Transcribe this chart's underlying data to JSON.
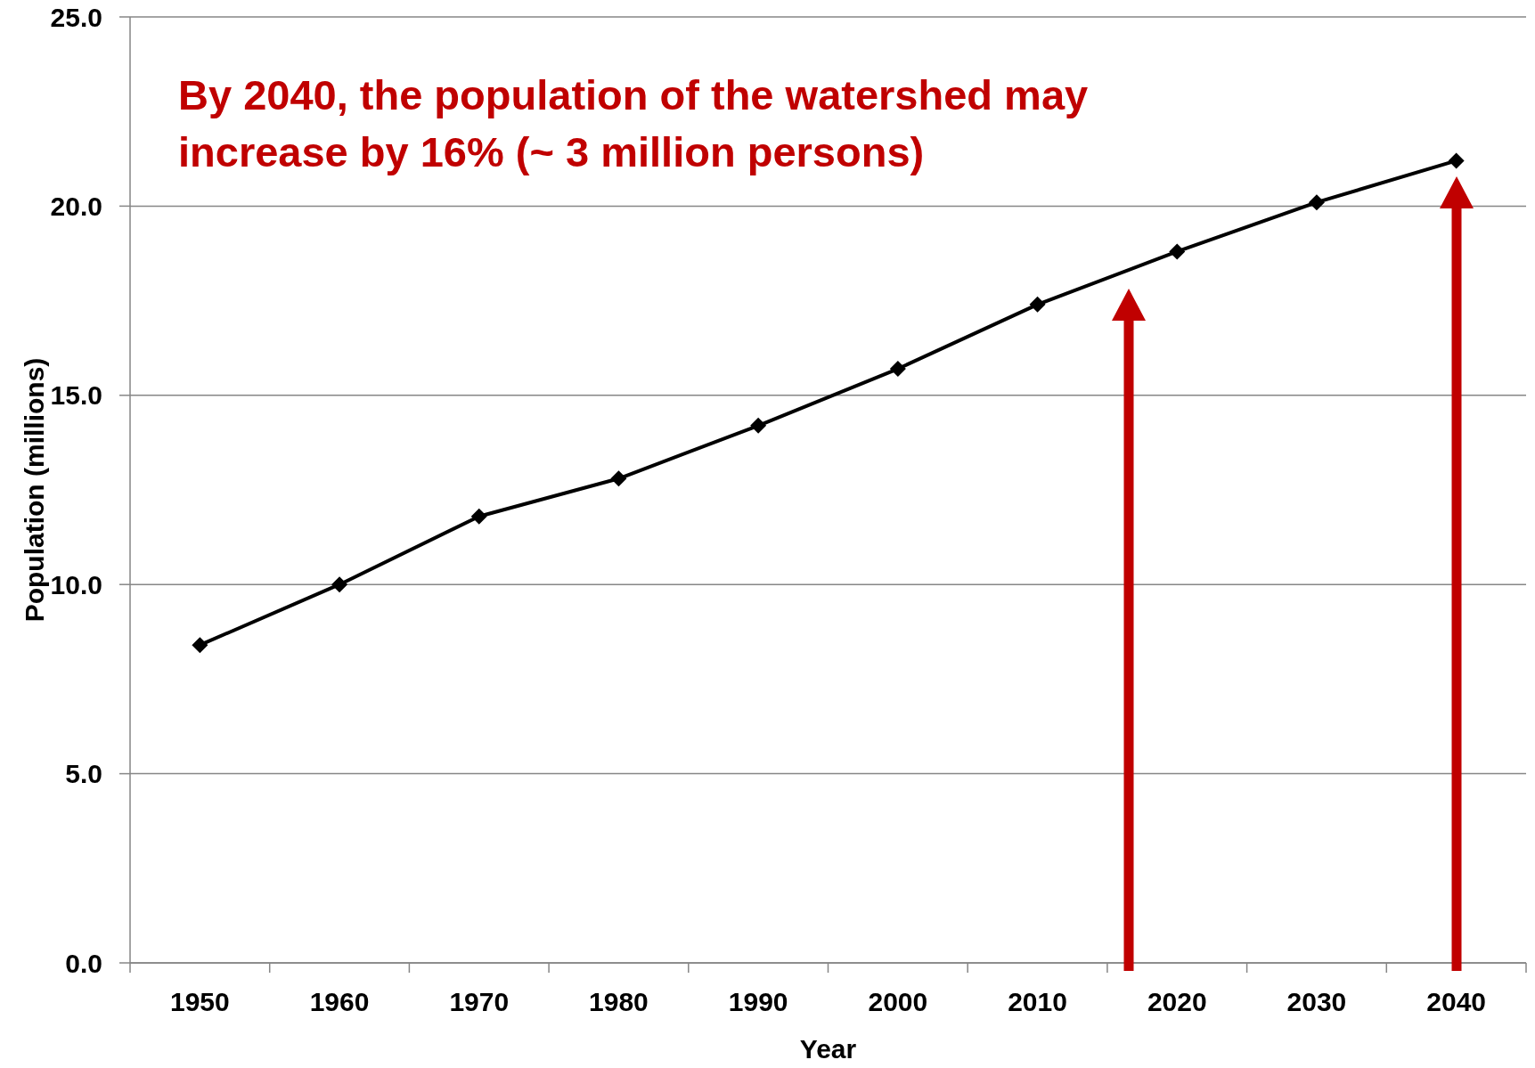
{
  "chart_data": {
    "type": "line",
    "xlabel": "Year",
    "ylabel": "Population (millions)",
    "annotations": [
      "By 2040, the population of the watershed may increase by 16% (~ 3 million persons)"
    ],
    "categories": [
      "1950",
      "1960",
      "1970",
      "1980",
      "1990",
      "2000",
      "2010",
      "2020",
      "2030",
      "2040"
    ],
    "values": [
      8.4,
      10.0,
      11.8,
      12.8,
      14.2,
      15.7,
      17.4,
      18.8,
      20.1,
      21.2
    ],
    "color": "#000000",
    "marker": "diamond",
    "line_style": "solid",
    "ylim": [
      0,
      25
    ],
    "yticks": [
      {
        "value": 0,
        "label": "0.0"
      },
      {
        "value": 5,
        "label": "5.0"
      },
      {
        "value": 10,
        "label": "10.0"
      },
      {
        "value": 15,
        "label": "15.0"
      },
      {
        "value": 20,
        "label": "20.0"
      },
      {
        "value": 25,
        "label": "25.0"
      }
    ],
    "grid": "y"
  }
}
